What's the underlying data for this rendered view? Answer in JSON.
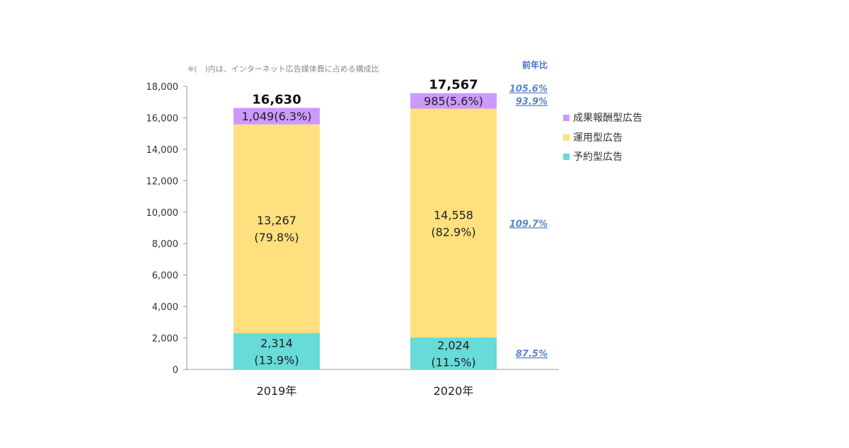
{
  "chart_data": {
    "type": "bar",
    "stacked": true,
    "note": "※(　)内は、インターネット広告媒体費に占める構成比",
    "categories": [
      "2019年",
      "2020年"
    ],
    "ylim": [
      0,
      18000
    ],
    "yticks": [
      "0",
      "2,000",
      "4,000",
      "6,000",
      "8,000",
      "10,000",
      "12,000",
      "14,000",
      "16,000",
      "18,000"
    ],
    "totals": [
      "16,630",
      "17,567"
    ],
    "series": [
      {
        "name": "予約型広告",
        "color": "#66dbd8",
        "values": [
          2314,
          2024
        ],
        "labels": [
          [
            "2,314",
            "(13.9%)"
          ],
          [
            "2,024",
            "(11.5%)"
          ]
        ]
      },
      {
        "name": "運用型広告",
        "color": "#ffe07f",
        "values": [
          13267,
          14558
        ],
        "labels": [
          [
            "13,267",
            "(79.8%)"
          ],
          [
            "14,558",
            "(82.9%)"
          ]
        ]
      },
      {
        "name": "成果報酬型広告",
        "color": "#cc99ff",
        "values": [
          1049,
          985
        ],
        "labels": [
          [
            "1,049(6.3%)"
          ],
          [
            "985(5.6%)"
          ]
        ]
      }
    ],
    "yoy": {
      "header": "前年比",
      "total": "105.6%",
      "series": [
        "87.5%",
        "109.7%",
        "93.9%"
      ]
    },
    "legend": {
      "position": "right",
      "order": [
        "成果報酬型広告",
        "運用型広告",
        "予約型広告"
      ]
    }
  }
}
